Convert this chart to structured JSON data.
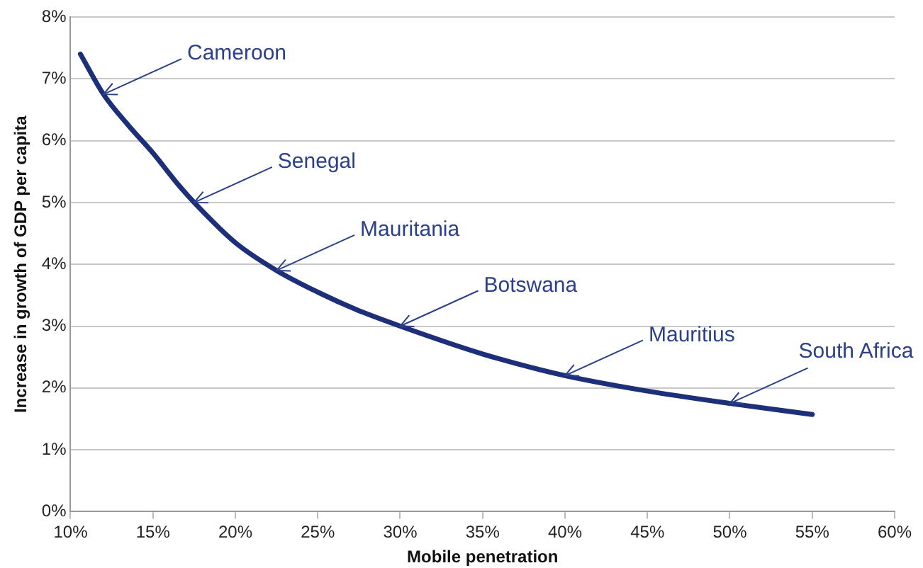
{
  "chart_data": {
    "type": "line",
    "xlabel": "Mobile penetration",
    "ylabel": "Increase in growth of GDP per capita",
    "x": [
      10.6,
      12,
      13.5,
      15,
      16.5,
      17.5,
      20,
      22.5,
      25,
      27.5,
      30,
      35,
      40,
      45,
      50,
      55
    ],
    "series": [
      {
        "color": "#1c2f78",
        "values": [
          7.4,
          6.75,
          6.25,
          5.8,
          5.3,
          5.0,
          4.35,
          3.9,
          3.55,
          3.25,
          3.0,
          2.55,
          2.2,
          1.95,
          1.75,
          1.57
        ]
      }
    ],
    "xlim": [
      10,
      60
    ],
    "xticks": [
      {
        "value": 10,
        "label": "10%"
      },
      {
        "value": 15,
        "label": "15%"
      },
      {
        "value": 20,
        "label": "20%"
      },
      {
        "value": 25,
        "label": "25%"
      },
      {
        "value": 30,
        "label": "30%"
      },
      {
        "value": 35,
        "label": "35%"
      },
      {
        "value": 40,
        "label": "40%"
      },
      {
        "value": 45,
        "label": "45%"
      },
      {
        "value": 50,
        "label": "50%"
      },
      {
        "value": 55,
        "label": "55%"
      },
      {
        "value": 60,
        "label": "60%"
      }
    ],
    "ylim": [
      0,
      8
    ],
    "yticks": [
      {
        "value": 0,
        "label": "0%"
      },
      {
        "value": 1,
        "label": "1%"
      },
      {
        "value": 2,
        "label": "2%"
      },
      {
        "value": 3,
        "label": "3%"
      },
      {
        "value": 4,
        "label": "4%"
      },
      {
        "value": 5,
        "label": "5%"
      },
      {
        "value": 6,
        "label": "6%"
      },
      {
        "value": 7,
        "label": "7%"
      },
      {
        "value": 8,
        "label": "8%"
      }
    ],
    "grid": "y",
    "legend": false,
    "marker": "none",
    "line_style": "solid",
    "annotations": [
      {
        "text": "Cameroon",
        "x": 12,
        "y": 6.75
      },
      {
        "text": "Senegal",
        "x": 17.5,
        "y": 5.0
      },
      {
        "text": "Mauritania",
        "x": 22.5,
        "y": 3.9
      },
      {
        "text": "Botswana",
        "x": 30,
        "y": 3.0
      },
      {
        "text": "Mauritius",
        "x": 40,
        "y": 2.2
      },
      {
        "text": "South Africa",
        "x": 50,
        "y": 1.75
      }
    ]
  }
}
